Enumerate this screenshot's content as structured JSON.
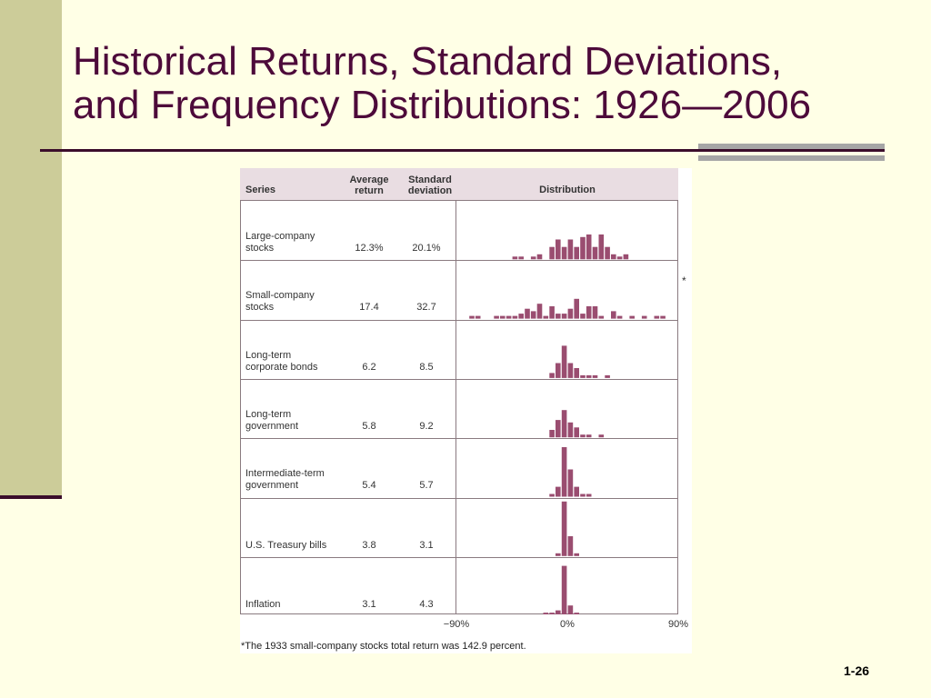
{
  "slide": {
    "title_line1": "Historical Returns, Standard Deviations,",
    "title_line2": "and Frequency Distributions: 1926—2006",
    "page_number": "1-26",
    "colors": {
      "background": "#ffffe6",
      "left_bar": "#cccc99",
      "title": "#4d0a3a",
      "rule": "#3b0d2b",
      "gray_bar": "#a6a6a6"
    }
  },
  "chart_data": {
    "type": "table",
    "columns": {
      "series": "Series",
      "average_line1": "Average",
      "average_line2": "return",
      "std_line1": "Standard",
      "std_line2": "deviation",
      "distribution": "Distribution"
    },
    "x_axis": {
      "min": -90,
      "max": 90,
      "bin_width": 5,
      "tick_labels": [
        "−90%",
        "0%",
        "90%"
      ]
    },
    "bar_color": "#9a4d70",
    "bar_unit": "count of years",
    "rows": [
      {
        "name_line1": "Large-company",
        "name_line2": "stocks",
        "average_return": "12.3%",
        "standard_deviation": "20.1%",
        "histogram": [
          {
            "bin": -45,
            "count": 1
          },
          {
            "bin": -40,
            "count": 1
          },
          {
            "bin": -30,
            "count": 1
          },
          {
            "bin": -25,
            "count": 2
          },
          {
            "bin": -15,
            "count": 5
          },
          {
            "bin": -10,
            "count": 8
          },
          {
            "bin": -5,
            "count": 5
          },
          {
            "bin": 0,
            "count": 8
          },
          {
            "bin": 5,
            "count": 5
          },
          {
            "bin": 10,
            "count": 9
          },
          {
            "bin": 15,
            "count": 10
          },
          {
            "bin": 20,
            "count": 5
          },
          {
            "bin": 25,
            "count": 10
          },
          {
            "bin": 30,
            "count": 5
          },
          {
            "bin": 35,
            "count": 2
          },
          {
            "bin": 40,
            "count": 1
          },
          {
            "bin": 45,
            "count": 2
          }
        ]
      },
      {
        "name_line1": "Small-company",
        "name_line2": "stocks",
        "average_return": "17.4",
        "standard_deviation": "32.7",
        "histogram": [
          {
            "bin": -80,
            "count": 1
          },
          {
            "bin": -75,
            "count": 1
          },
          {
            "bin": -60,
            "count": 1
          },
          {
            "bin": -55,
            "count": 1
          },
          {
            "bin": -50,
            "count": 1
          },
          {
            "bin": -45,
            "count": 1
          },
          {
            "bin": -40,
            "count": 2
          },
          {
            "bin": -35,
            "count": 4
          },
          {
            "bin": -30,
            "count": 3
          },
          {
            "bin": -25,
            "count": 6
          },
          {
            "bin": -20,
            "count": 1
          },
          {
            "bin": -15,
            "count": 5
          },
          {
            "bin": -10,
            "count": 2
          },
          {
            "bin": -5,
            "count": 2
          },
          {
            "bin": 0,
            "count": 4
          },
          {
            "bin": 5,
            "count": 8
          },
          {
            "bin": 10,
            "count": 2
          },
          {
            "bin": 15,
            "count": 5
          },
          {
            "bin": 20,
            "count": 5
          },
          {
            "bin": 25,
            "count": 1
          },
          {
            "bin": 35,
            "count": 3
          },
          {
            "bin": 40,
            "count": 1
          },
          {
            "bin": 50,
            "count": 1
          },
          {
            "bin": 60,
            "count": 1
          },
          {
            "bin": 70,
            "count": 1
          },
          {
            "bin": 75,
            "count": 1
          }
        ]
      },
      {
        "name_line1": "Long-term",
        "name_line2": "corporate bonds",
        "average_return": "6.2",
        "standard_deviation": "8.5",
        "histogram": [
          {
            "bin": -15,
            "count": 2
          },
          {
            "bin": -10,
            "count": 6
          },
          {
            "bin": -5,
            "count": 13
          },
          {
            "bin": 0,
            "count": 6
          },
          {
            "bin": 5,
            "count": 4
          },
          {
            "bin": 10,
            "count": 1
          },
          {
            "bin": 15,
            "count": 1
          },
          {
            "bin": 20,
            "count": 1
          },
          {
            "bin": 30,
            "count": 1
          }
        ]
      },
      {
        "name_line1": "Long-term",
        "name_line2": "government",
        "average_return": "5.8",
        "standard_deviation": "9.2",
        "histogram": [
          {
            "bin": -15,
            "count": 3
          },
          {
            "bin": -10,
            "count": 7
          },
          {
            "bin": -5,
            "count": 11
          },
          {
            "bin": 0,
            "count": 6
          },
          {
            "bin": 5,
            "count": 4
          },
          {
            "bin": 10,
            "count": 1
          },
          {
            "bin": 15,
            "count": 1
          },
          {
            "bin": 25,
            "count": 1
          }
        ]
      },
      {
        "name_line1": "Intermediate-term",
        "name_line2": "government",
        "average_return": "5.4",
        "standard_deviation": "5.7",
        "histogram": [
          {
            "bin": -15,
            "count": 1
          },
          {
            "bin": -10,
            "count": 4
          },
          {
            "bin": -5,
            "count": 20
          },
          {
            "bin": 0,
            "count": 11
          },
          {
            "bin": 5,
            "count": 4
          },
          {
            "bin": 10,
            "count": 1
          },
          {
            "bin": 15,
            "count": 1
          }
        ]
      },
      {
        "name_line1": "U.S. Treasury bills",
        "name_line2": "",
        "average_return": "3.8",
        "standard_deviation": "3.1",
        "histogram": [
          {
            "bin": -10,
            "count": 1
          },
          {
            "bin": -5,
            "count": 22
          },
          {
            "bin": 0,
            "count": 8
          },
          {
            "bin": 5,
            "count": 1
          }
        ]
      },
      {
        "name_line1": "Inflation",
        "name_line2": "",
        "average_return": "3.1",
        "standard_deviation": "4.3",
        "histogram": [
          {
            "bin": -20,
            "count": 1
          },
          {
            "bin": -15,
            "count": 1
          },
          {
            "bin": -10,
            "count": 2
          },
          {
            "bin": -5,
            "count": 20
          },
          {
            "bin": 0,
            "count": 4
          },
          {
            "bin": 5,
            "count": 1
          }
        ]
      }
    ],
    "footnote": "*The 1933 small-company stocks total return was 142.9 percent.",
    "asterisk": "*"
  }
}
